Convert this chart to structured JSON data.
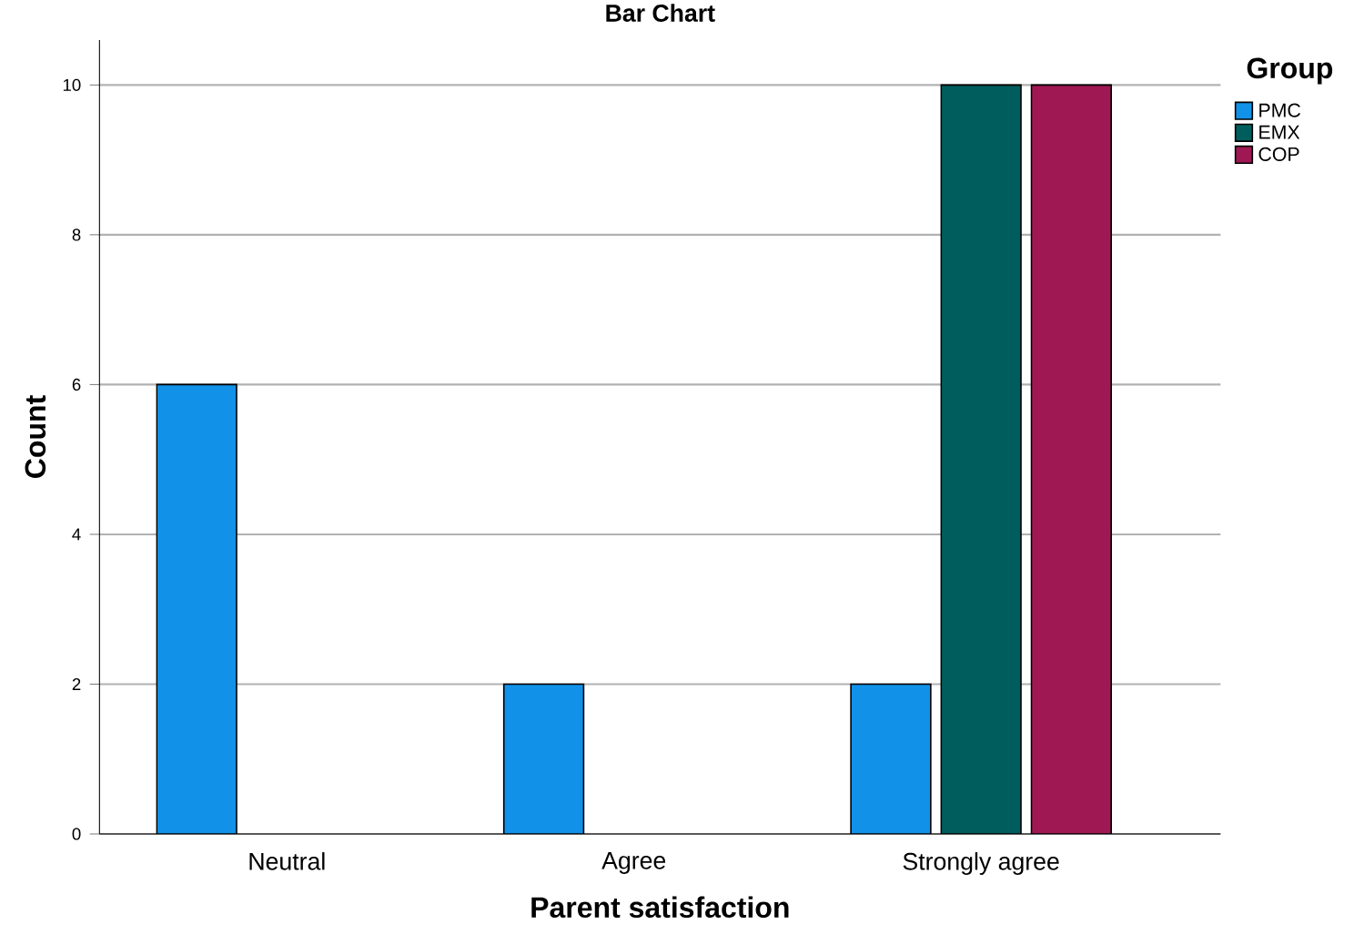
{
  "chart_data": {
    "type": "bar",
    "title": "Bar Chart",
    "xlabel": "Parent satisfaction",
    "ylabel": "Count",
    "legend_title": "Group",
    "categories": [
      "Neutral",
      "Agree",
      "Strongly agree"
    ],
    "series": [
      {
        "name": "PMC",
        "color": "#1192e8",
        "values": [
          6,
          2,
          2
        ]
      },
      {
        "name": "EMX",
        "color": "#005d5d",
        "values": [
          null,
          null,
          10
        ]
      },
      {
        "name": "COP",
        "color": "#9f1853",
        "values": [
          null,
          null,
          10
        ]
      }
    ],
    "ylim": [
      0,
      10.6
    ],
    "yticks": [
      0,
      2,
      4,
      6,
      8,
      10
    ],
    "grid": "y",
    "legend": "top right"
  }
}
